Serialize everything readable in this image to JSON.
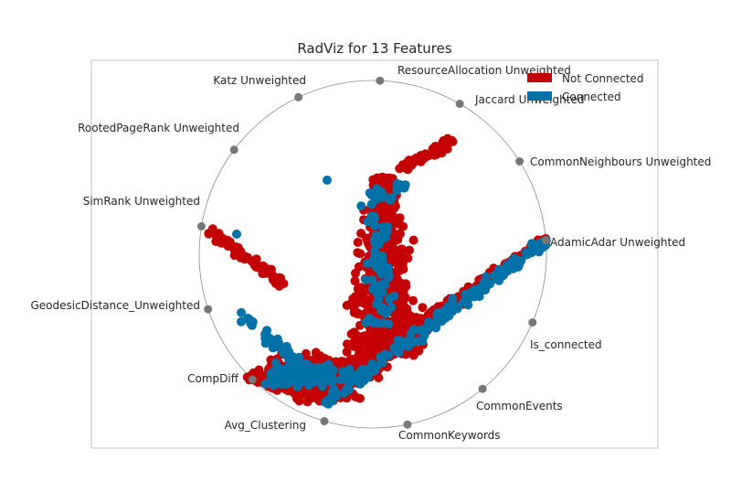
{
  "chart_data": {
    "type": "scatter",
    "title": "RadViz for 13 Features",
    "features": [
      "Is_connected",
      "AdamicAdar Unweighted",
      "CommonNeighbours Unweighted",
      "Jaccard Unweighted",
      "ResourceAllocation Unweighted",
      "Katz Unweighted",
      "RootedPageRank Unweighted",
      "SimRank Unweighted",
      "GeodesicDistance_Unweighted",
      "CompDiff",
      "Avg_Clustering",
      "CommonKeywords",
      "CommonEvents"
    ],
    "series": [
      {
        "name": "Not Connected",
        "color": "#c40000"
      },
      {
        "name": "Connected",
        "color": "#0072a8"
      }
    ],
    "legend_position": "top-right",
    "grid": false,
    "xlim": [
      -1,
      1
    ],
    "ylim": [
      -1,
      1
    ]
  },
  "colors": {
    "circle": "#8c8c8c",
    "anchor": "#777777",
    "frame": "#cccccc"
  }
}
